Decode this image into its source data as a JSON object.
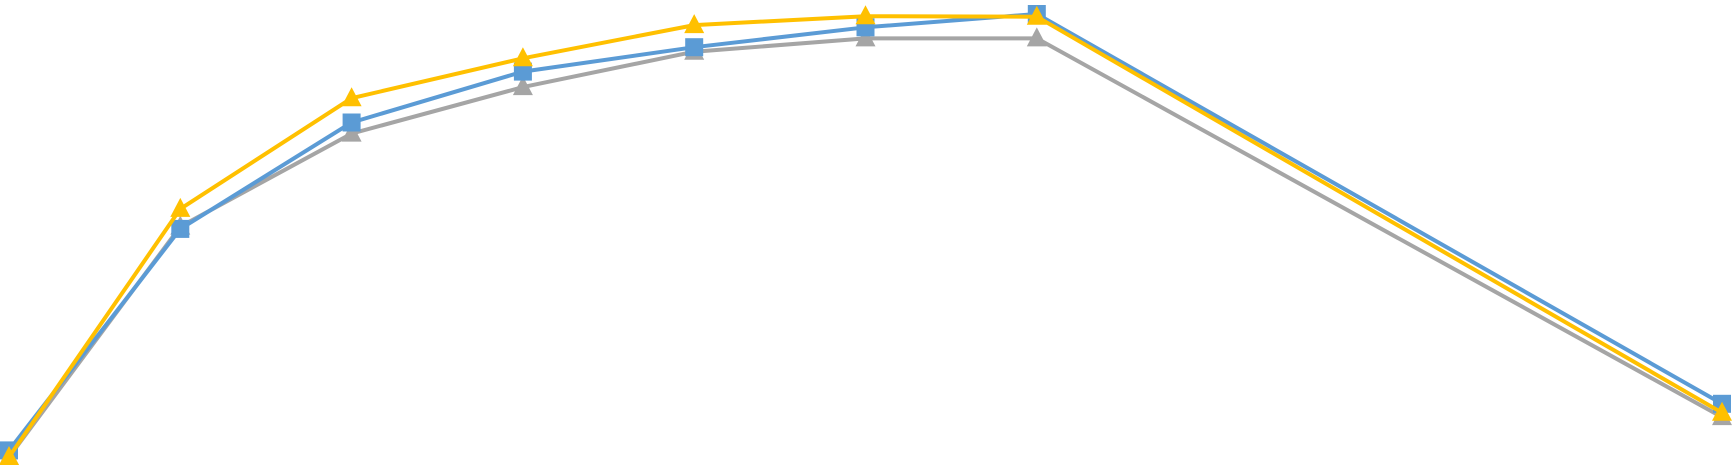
{
  "chart_data": {
    "type": "line",
    "title": "",
    "xlabel": "",
    "ylabel": "",
    "x": [
      0,
      1,
      2,
      3,
      4,
      5,
      6,
      10
    ],
    "xlim": [
      0,
      10
    ],
    "ylim": [
      0,
      100
    ],
    "grid": false,
    "legend": "none",
    "series": [
      {
        "color": "#FFC000",
        "marker": "triangle",
        "values": [
          0,
          56,
          81,
          90,
          97.5,
          99.5,
          99.4,
          10
        ]
      },
      {
        "color": "#5B9BD5",
        "marker": "square",
        "values": [
          1.5,
          51.5,
          75.5,
          87,
          92.5,
          97,
          100,
          12
        ]
      },
      {
        "color": "#A5A5A5",
        "marker": "triangle",
        "values": [
          0,
          52,
          73,
          83.5,
          91.5,
          94.5,
          94.5,
          9
        ]
      }
    ]
  }
}
